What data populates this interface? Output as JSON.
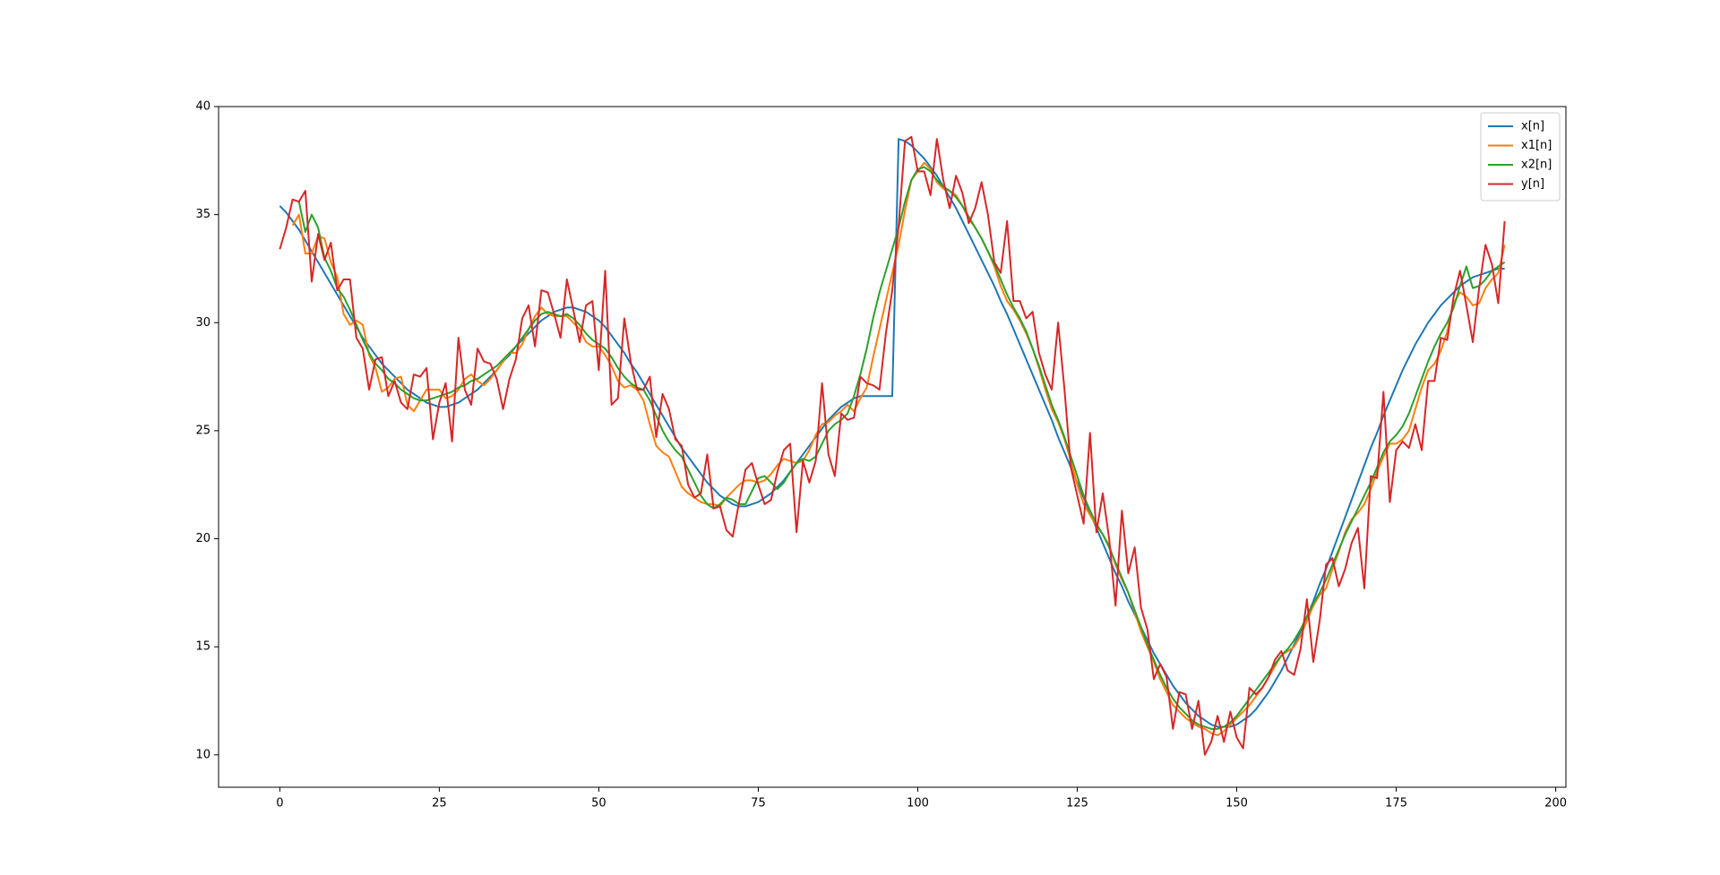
{
  "chart_data": {
    "type": "line",
    "x": [
      0,
      1,
      2,
      3,
      4,
      5,
      6,
      7,
      8,
      9,
      10,
      11,
      12,
      13,
      14,
      15,
      16,
      17,
      18,
      19,
      20,
      21,
      22,
      23,
      24,
      25,
      26,
      27,
      28,
      29,
      30,
      31,
      32,
      33,
      34,
      35,
      36,
      37,
      38,
      39,
      40,
      41,
      42,
      43,
      44,
      45,
      46,
      47,
      48,
      49,
      50,
      51,
      52,
      53,
      54,
      55,
      56,
      57,
      58,
      59,
      60,
      61,
      62,
      63,
      64,
      65,
      66,
      67,
      68,
      69,
      70,
      71,
      72,
      73,
      74,
      75,
      76,
      77,
      78,
      79,
      80,
      81,
      82,
      83,
      84,
      85,
      86,
      87,
      88,
      89,
      90,
      91,
      92,
      93,
      94,
      95,
      96,
      97,
      98,
      99,
      100,
      101,
      102,
      103,
      104,
      105,
      106,
      107,
      108,
      109,
      110,
      111,
      112,
      113,
      114,
      115,
      116,
      117,
      118,
      119,
      120,
      121,
      122,
      123,
      124,
      125,
      126,
      127,
      128,
      129,
      130,
      131,
      132,
      133,
      134,
      135,
      136,
      137,
      138,
      139,
      140,
      141,
      142,
      143,
      144,
      145,
      146,
      147,
      148,
      149,
      150,
      151,
      152,
      153,
      154,
      155,
      156,
      157,
      158,
      159,
      160,
      161,
      162,
      163,
      164,
      165,
      166,
      167,
      168,
      169,
      170,
      171,
      172,
      173,
      174,
      175,
      176,
      177,
      178,
      179,
      180,
      181,
      182,
      183,
      184,
      185,
      186,
      187,
      188,
      189,
      190,
      191,
      192
    ],
    "series": [
      {
        "name": "x[n]",
        "color": "#1f77b4",
        "values": [
          35.4,
          35.1,
          34.7,
          34.3,
          33.8,
          33.3,
          32.8,
          32.3,
          31.8,
          31.3,
          30.8,
          30.3,
          29.8,
          29.3,
          28.9,
          28.5,
          28.1,
          27.8,
          27.5,
          27.2,
          26.9,
          26.7,
          26.5,
          26.3,
          26.2,
          26.1,
          26.1,
          26.2,
          26.3,
          26.5,
          26.7,
          26.9,
          27.2,
          27.5,
          27.8,
          28.2,
          28.5,
          28.9,
          29.2,
          29.5,
          29.8,
          30.1,
          30.3,
          30.5,
          30.6,
          30.7,
          30.7,
          30.6,
          30.5,
          30.3,
          30.1,
          29.8,
          29.4,
          29.0,
          28.6,
          28.1,
          27.7,
          27.2,
          26.7,
          26.2,
          25.7,
          25.2,
          24.7,
          24.2,
          23.8,
          23.4,
          23.0,
          22.6,
          22.3,
          22.0,
          21.8,
          21.6,
          21.5,
          21.5,
          21.6,
          21.7,
          21.9,
          22.1,
          22.4,
          22.7,
          23.1,
          23.5,
          23.9,
          24.3,
          24.7,
          25.1,
          25.5,
          25.8,
          26.1,
          26.3,
          26.5,
          26.6,
          26.6,
          26.6,
          26.6,
          26.6,
          26.6,
          38.5,
          38.4,
          38.2,
          37.9,
          37.6,
          37.2,
          36.8,
          36.3,
          35.8,
          35.3,
          34.7,
          34.1,
          33.5,
          32.9,
          32.3,
          31.7,
          31.0,
          30.4,
          29.7,
          29.0,
          28.3,
          27.6,
          26.9,
          26.2,
          25.5,
          24.7,
          24.0,
          23.3,
          22.6,
          21.9,
          21.2,
          20.5,
          19.8,
          19.1,
          18.4,
          17.8,
          17.1,
          16.5,
          15.9,
          15.3,
          14.7,
          14.2,
          13.7,
          13.2,
          12.8,
          12.4,
          12.1,
          11.8,
          11.6,
          11.4,
          11.3,
          11.3,
          11.3,
          11.4,
          11.6,
          11.8,
          12.1,
          12.5,
          12.9,
          13.4,
          13.9,
          14.5,
          15.1,
          15.7,
          16.4,
          17.1,
          17.9,
          18.6,
          19.4,
          20.2,
          21.0,
          21.8,
          22.6,
          23.4,
          24.2,
          24.9,
          25.7,
          26.4,
          27.1,
          27.8,
          28.4,
          29.0,
          29.5,
          30.0,
          30.4,
          30.8,
          31.1,
          31.4,
          31.7,
          31.9,
          32.1,
          32.2,
          32.3,
          32.4,
          32.5,
          32.5
        ]
      },
      {
        "name": "x1[n]",
        "color": "#ff7f0e",
        "values": [
          null,
          null,
          34.5,
          35.0,
          33.2,
          33.2,
          34.0,
          33.9,
          32.8,
          32.1,
          30.4,
          29.9,
          30.1,
          29.9,
          28.5,
          27.9,
          26.8,
          27.0,
          27.4,
          27.5,
          26.2,
          25.9,
          26.4,
          26.9,
          26.9,
          26.9,
          26.5,
          26.6,
          26.9,
          27.4,
          27.6,
          27.3,
          27.1,
          27.4,
          27.8,
          28.2,
          28.6,
          28.6,
          29.0,
          29.7,
          30.3,
          30.7,
          30.4,
          30.3,
          30.3,
          30.3,
          30.0,
          29.7,
          29.1,
          28.9,
          28.9,
          28.5,
          28.0,
          27.3,
          27.0,
          27.1,
          26.9,
          26.4,
          25.3,
          24.3,
          24.0,
          23.8,
          23.1,
          22.4,
          22.1,
          21.9,
          21.7,
          21.6,
          21.6,
          21.5,
          21.9,
          22.2,
          22.5,
          22.7,
          22.7,
          22.6,
          22.7,
          23.0,
          23.4,
          23.7,
          23.6,
          23.5,
          23.6,
          24.1,
          24.8,
          25.3,
          25.4,
          25.7,
          25.9,
          26.2,
          25.9,
          26.5,
          27.0,
          28.4,
          29.7,
          31.0,
          32.3,
          33.6,
          35.2,
          36.6,
          37.0,
          37.4,
          37.1,
          36.5,
          36.2,
          36.1,
          35.9,
          35.4,
          34.8,
          34.4,
          33.9,
          33.3,
          32.6,
          31.7,
          31.0,
          30.6,
          30.1,
          29.5,
          28.8,
          27.9,
          26.9,
          26.0,
          25.4,
          24.6,
          23.6,
          22.5,
          21.6,
          21.1,
          20.6,
          20.2,
          19.7,
          18.8,
          18.1,
          17.5,
          16.6,
          15.7,
          15.0,
          14.3,
          13.5,
          12.9,
          12.3,
          12.0,
          11.7,
          11.5,
          11.3,
          11.2,
          11.0,
          10.9,
          11.1,
          11.4,
          11.7,
          12.0,
          12.3,
          12.7,
          13.1,
          13.6,
          14.1,
          14.6,
          14.8,
          15.0,
          15.5,
          16.2,
          16.9,
          17.4,
          17.7,
          18.6,
          19.4,
          20.3,
          20.9,
          21.2,
          21.6,
          22.3,
          23.1,
          23.8,
          24.4,
          24.4,
          24.6,
          25.0,
          26.0,
          27.0,
          27.8,
          28.1,
          28.7,
          29.6,
          30.9,
          31.4,
          31.2,
          30.8,
          30.9,
          31.6,
          32.0,
          32.3,
          33.6
        ]
      },
      {
        "name": "x2[n]",
        "color": "#2ca02c",
        "values": [
          null,
          null,
          null,
          35.6,
          34.2,
          35.0,
          34.4,
          33.0,
          32.4,
          31.6,
          31.2,
          30.6,
          29.9,
          29.2,
          28.6,
          28.1,
          27.8,
          27.4,
          27.2,
          26.9,
          26.7,
          26.5,
          26.4,
          26.4,
          26.5,
          26.6,
          26.7,
          26.8,
          27.0,
          27.1,
          27.3,
          27.4,
          27.6,
          27.8,
          28.0,
          28.3,
          28.6,
          28.9,
          29.3,
          29.7,
          30.1,
          30.4,
          30.5,
          30.4,
          30.3,
          30.4,
          30.2,
          29.9,
          29.5,
          29.2,
          29.0,
          28.8,
          28.4,
          27.9,
          27.5,
          27.2,
          27.0,
          26.9,
          26.4,
          25.7,
          25.0,
          24.5,
          24.1,
          23.8,
          23.2,
          22.6,
          22.0,
          21.6,
          21.4,
          21.6,
          21.9,
          21.8,
          21.6,
          21.6,
          22.2,
          22.8,
          22.9,
          22.6,
          22.3,
          22.6,
          23.1,
          23.5,
          23.7,
          23.6,
          23.8,
          24.4,
          25.0,
          25.3,
          25.5,
          25.8,
          26.6,
          27.6,
          28.8,
          30.2,
          31.4,
          32.4,
          33.4,
          34.4,
          35.6,
          36.6,
          37.1,
          37.2,
          37.0,
          36.6,
          36.3,
          36.1,
          35.8,
          35.4,
          34.9,
          34.4,
          33.9,
          33.3,
          32.7,
          32.0,
          31.3,
          30.7,
          30.2,
          29.6,
          28.8,
          28.0,
          27.1,
          26.2,
          25.5,
          24.7,
          23.8,
          22.9,
          22.0,
          21.3,
          20.7,
          20.2,
          19.6,
          18.9,
          18.2,
          17.5,
          16.7,
          15.9,
          15.1,
          14.4,
          13.7,
          13.1,
          12.6,
          12.2,
          11.9,
          11.6,
          11.4,
          11.3,
          11.2,
          11.2,
          11.3,
          11.5,
          11.8,
          12.2,
          12.6,
          13.0,
          13.4,
          13.8,
          14.2,
          14.6,
          14.9,
          15.3,
          15.8,
          16.4,
          17.0,
          17.5,
          18.1,
          18.8,
          19.5,
          20.2,
          20.8,
          21.4,
          22.0,
          22.6,
          23.3,
          24.0,
          24.5,
          24.8,
          25.2,
          25.8,
          26.6,
          27.4,
          28.2,
          28.9,
          29.5,
          30.0,
          30.7,
          31.7,
          32.6,
          31.6,
          31.7,
          32.0,
          32.4,
          32.6,
          32.8
        ]
      },
      {
        "name": "y[n]",
        "color": "#d62728",
        "values": [
          33.4,
          34.4,
          35.7,
          35.6,
          36.1,
          31.9,
          34.1,
          32.9,
          33.7,
          31.5,
          32.0,
          32.0,
          29.3,
          28.8,
          26.9,
          28.3,
          28.4,
          26.6,
          27.3,
          26.3,
          26.0,
          27.6,
          27.5,
          27.9,
          24.6,
          26.3,
          27.2,
          24.5,
          29.3,
          26.9,
          26.2,
          28.8,
          28.2,
          28.1,
          27.4,
          26.0,
          27.4,
          28.3,
          30.2,
          30.8,
          28.9,
          31.5,
          31.4,
          30.4,
          29.3,
          32.0,
          30.6,
          29.1,
          30.8,
          31.0,
          27.8,
          32.4,
          26.2,
          26.5,
          30.2,
          28.2,
          26.9,
          26.9,
          27.5,
          24.7,
          26.7,
          26.0,
          24.6,
          24.3,
          22.5,
          21.9,
          22.1,
          23.9,
          21.4,
          21.5,
          20.4,
          20.1,
          21.7,
          23.2,
          23.5,
          22.5,
          21.6,
          21.8,
          23.1,
          24.1,
          24.4,
          20.3,
          23.6,
          22.6,
          23.6,
          27.2,
          23.9,
          22.9,
          25.8,
          25.5,
          25.6,
          27.5,
          27.2,
          27.1,
          26.9,
          29.5,
          31.5,
          34.5,
          38.4,
          38.6,
          37.0,
          37.0,
          35.9,
          38.5,
          36.6,
          35.3,
          36.8,
          36.0,
          34.6,
          35.3,
          36.5,
          35.0,
          32.8,
          32.3,
          34.7,
          31.0,
          31.0,
          30.2,
          30.5,
          28.6,
          27.6,
          26.9,
          30.0,
          26.9,
          23.3,
          22.0,
          20.7,
          24.9,
          20.3,
          22.1,
          20.0,
          16.9,
          21.3,
          18.4,
          19.6,
          16.8,
          15.8,
          13.5,
          14.2,
          13.6,
          11.2,
          12.9,
          12.8,
          11.2,
          12.5,
          10.0,
          10.6,
          11.8,
          10.6,
          12.0,
          10.8,
          10.3,
          13.1,
          12.8,
          13.1,
          13.6,
          14.4,
          14.8,
          13.9,
          13.7,
          14.9,
          17.2,
          14.3,
          16.2,
          18.8,
          19.1,
          17.8,
          18.6,
          19.8,
          20.5,
          17.7,
          22.9,
          22.8,
          26.8,
          21.7,
          24.1,
          24.5,
          24.2,
          25.3,
          24.1,
          27.3,
          27.3,
          29.3,
          29.2,
          31.2,
          32.4,
          30.8,
          29.1,
          31.6,
          33.6,
          32.7,
          30.9,
          34.7
        ]
      }
    ],
    "xlim": [
      -9.6,
      201.6
    ],
    "xticks": [
      0,
      25,
      50,
      75,
      100,
      125,
      150,
      175,
      200
    ],
    "ylim": [
      8.5,
      40
    ],
    "yticks": [
      10,
      15,
      20,
      25,
      30,
      35,
      40
    ],
    "legend": "upper right"
  }
}
